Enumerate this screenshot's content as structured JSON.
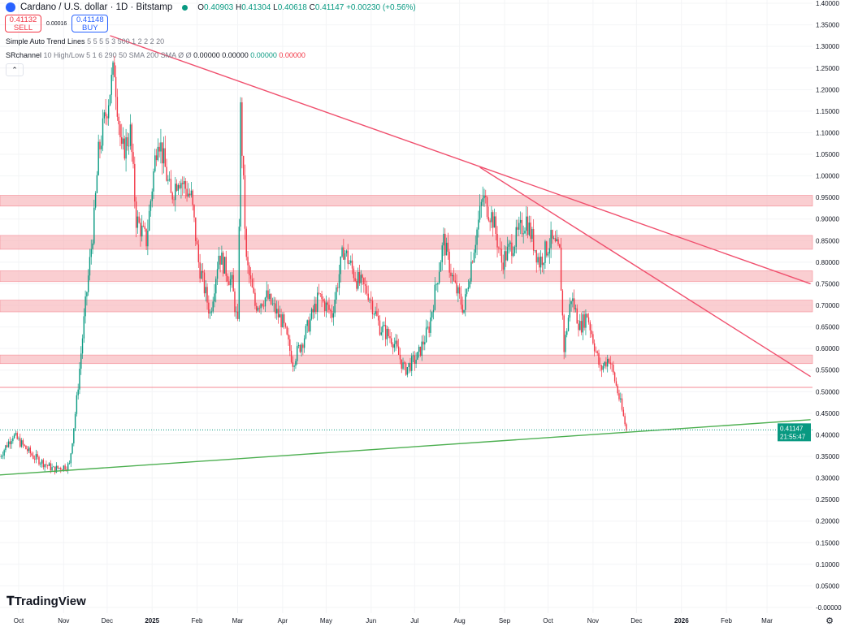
{
  "header": {
    "title": "Cardano / U.S. dollar · 1D · Bitstamp",
    "o_label": "O",
    "o": "0.40903",
    "h_label": "H",
    "h": "0.41304",
    "l_label": "L",
    "l": "0.40618",
    "c_label": "C",
    "c": "0.41147",
    "change": "+0.00230 (+0.56%)"
  },
  "trade": {
    "sell_price": "0.41132",
    "sell_label": "SELL",
    "spread": "0.00016",
    "buy_price": "0.41148",
    "buy_label": "BUY"
  },
  "indicators": [
    {
      "name": "Simple Auto Trend Lines",
      "params": "5 5 5 5 3 500 1 2 2 2 20"
    },
    {
      "name": "SRchannel",
      "params": "10 High/Low 5 1 6 290 50 SMA 200 SMA  Ø  Ø",
      "v1": "0.00000",
      "v2": "0.00000",
      "v3": "0.00000",
      "v4": "0.00000"
    }
  ],
  "collapse_icon": "chevron-up-icon",
  "brand": "TradingView",
  "colors": {
    "up": "#089981",
    "down": "#f23645",
    "zone": "#f7b3b8",
    "trend_red": "#f0506e",
    "trend_green": "#4caf50"
  },
  "chart_data": {
    "type": "candlestick",
    "ylim": [
      0,
      1.4
    ],
    "y_ticks": [
      "1.40000",
      "1.35000",
      "1.30000",
      "1.25000",
      "1.20000",
      "1.15000",
      "1.10000",
      "1.05000",
      "1.00000",
      "0.95000",
      "0.90000",
      "0.85000",
      "0.80000",
      "0.75000",
      "0.70000",
      "0.65000",
      "0.60000",
      "0.55000",
      "0.50000",
      "0.45000",
      "0.40000",
      "0.35000",
      "0.30000",
      "0.25000",
      "0.20000",
      "0.15000",
      "0.10000",
      "0.05000",
      "-0.00000"
    ],
    "x_ticks": [
      [
        "2024-10-01",
        "Oct"
      ],
      [
        "2024-11-01",
        "Nov"
      ],
      [
        "2024-12-01",
        "Dec"
      ],
      [
        "2025-01-01",
        "2025"
      ],
      [
        "2025-02-01",
        "Feb"
      ],
      [
        "2025-03-01",
        "Mar"
      ],
      [
        "2025-04-01",
        "Apr"
      ],
      [
        "2025-05-01",
        "May"
      ],
      [
        "2025-06-01",
        "Jun"
      ],
      [
        "2025-07-01",
        "Jul"
      ],
      [
        "2025-08-01",
        "Aug"
      ],
      [
        "2025-09-01",
        "Sep"
      ],
      [
        "2025-10-01",
        "Oct"
      ],
      [
        "2025-11-01",
        "Nov"
      ],
      [
        "2025-12-01",
        "Dec"
      ],
      [
        "2026-01-01",
        "2026"
      ],
      [
        "2026-02-01",
        "Feb"
      ],
      [
        "2026-03-01",
        "Mar"
      ]
    ],
    "close_path": [
      [
        "2024-09-18",
        0.35
      ],
      [
        "2024-09-27",
        0.4
      ],
      [
        "2024-10-11",
        0.35
      ],
      [
        "2024-10-25",
        0.32
      ],
      [
        "2024-11-05",
        0.33
      ],
      [
        "2024-11-10",
        0.48
      ],
      [
        "2024-11-16",
        0.7
      ],
      [
        "2024-11-22",
        0.9
      ],
      [
        "2024-11-25",
        1.05
      ],
      [
        "2024-12-03",
        1.2
      ],
      [
        "2024-12-06",
        1.25
      ],
      [
        "2024-12-11",
        1.05
      ],
      [
        "2024-12-17",
        1.1
      ],
      [
        "2024-12-21",
        0.9
      ],
      [
        "2024-12-28",
        0.85
      ],
      [
        "2025-01-05",
        1.1
      ],
      [
        "2025-01-14",
        0.95
      ],
      [
        "2025-01-19",
        1.0
      ],
      [
        "2025-01-28",
        0.95
      ],
      [
        "2025-02-02",
        0.8
      ],
      [
        "2025-02-10",
        0.68
      ],
      [
        "2025-02-16",
        0.82
      ],
      [
        "2025-02-25",
        0.75
      ],
      [
        "2025-03-01",
        0.65
      ],
      [
        "2025-03-03",
        1.15
      ],
      [
        "2025-03-07",
        0.8
      ],
      [
        "2025-03-13",
        0.7
      ],
      [
        "2025-03-21",
        0.72
      ],
      [
        "2025-04-01",
        0.66
      ],
      [
        "2025-04-08",
        0.57
      ],
      [
        "2025-04-15",
        0.62
      ],
      [
        "2025-04-26",
        0.72
      ],
      [
        "2025-05-05",
        0.68
      ],
      [
        "2025-05-13",
        0.83
      ],
      [
        "2025-05-22",
        0.76
      ],
      [
        "2025-05-30",
        0.73
      ],
      [
        "2025-06-07",
        0.65
      ],
      [
        "2025-06-16",
        0.62
      ],
      [
        "2025-06-24",
        0.55
      ],
      [
        "2025-07-03",
        0.58
      ],
      [
        "2025-07-11",
        0.65
      ],
      [
        "2025-07-21",
        0.85
      ],
      [
        "2025-07-28",
        0.75
      ],
      [
        "2025-08-04",
        0.69
      ],
      [
        "2025-08-09",
        0.8
      ],
      [
        "2025-08-17",
        0.95
      ],
      [
        "2025-08-24",
        0.9
      ],
      [
        "2025-08-30",
        0.8
      ],
      [
        "2025-09-08",
        0.85
      ],
      [
        "2025-09-16",
        0.9
      ],
      [
        "2025-09-25",
        0.8
      ],
      [
        "2025-10-03",
        0.85
      ],
      [
        "2025-10-09",
        0.82
      ],
      [
        "2025-10-12",
        0.6
      ],
      [
        "2025-10-17",
        0.72
      ],
      [
        "2025-10-23",
        0.65
      ],
      [
        "2025-10-28",
        0.68
      ],
      [
        "2025-11-06",
        0.55
      ],
      [
        "2025-11-12",
        0.58
      ],
      [
        "2025-11-18",
        0.5
      ],
      [
        "2025-11-24",
        0.41147
      ]
    ],
    "sr_zones": [
      [
        0.93,
        0.955
      ],
      [
        0.83,
        0.862
      ],
      [
        0.755,
        0.78
      ],
      [
        0.685,
        0.712
      ],
      [
        0.565,
        0.585
      ]
    ],
    "sr_line": 0.51,
    "trend_lines": [
      {
        "color": "red",
        "from": [
          "2024-12-03",
          1.325
        ],
        "to": [
          "2026-03-31",
          0.75
        ]
      },
      {
        "color": "red",
        "from": [
          "2025-08-15",
          1.02
        ],
        "to": [
          "2026-03-31",
          0.535
        ]
      },
      {
        "color": "green",
        "from": [
          "2024-09-18",
          0.307
        ],
        "to": [
          "2026-03-31",
          0.435
        ]
      }
    ],
    "last_price": "0.41147",
    "countdown": "21:55:47"
  }
}
